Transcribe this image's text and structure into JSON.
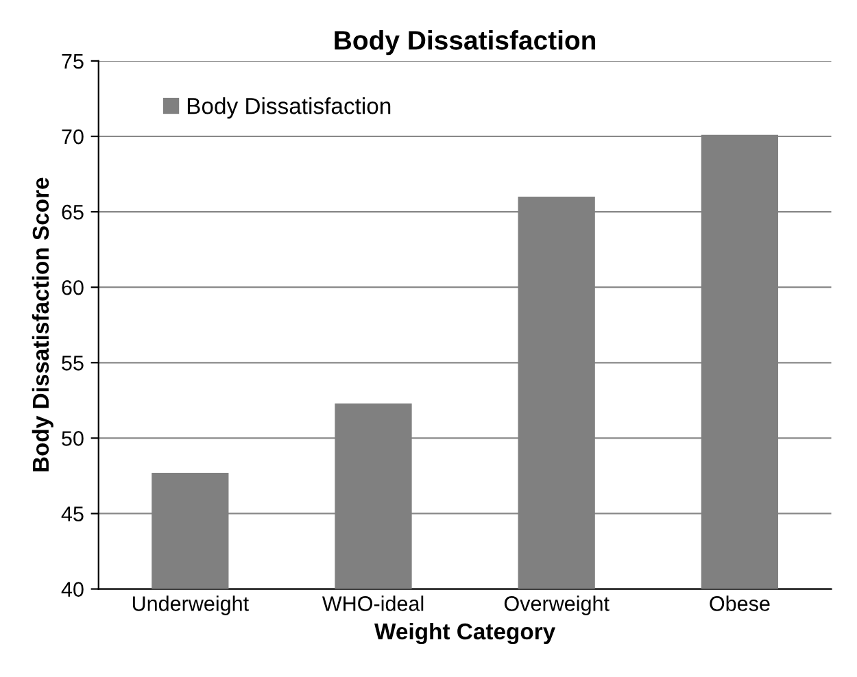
{
  "chart_data": {
    "type": "bar",
    "title": "Body Dissatisfaction",
    "xlabel": "Weight Category",
    "ylabel": "Body Dissatisfaction Score",
    "categories": [
      "Underweight",
      "WHO-ideal",
      "Overweight",
      "Obese"
    ],
    "series": [
      {
        "name": "Body Dissatisfaction",
        "color": "#808080",
        "values": [
          47.7,
          52.3,
          66.0,
          70.1
        ]
      }
    ],
    "ylim": [
      40,
      75
    ],
    "yticks": [
      40,
      45,
      50,
      55,
      60,
      65,
      70,
      75
    ],
    "grid": "y",
    "legend": "top left"
  }
}
